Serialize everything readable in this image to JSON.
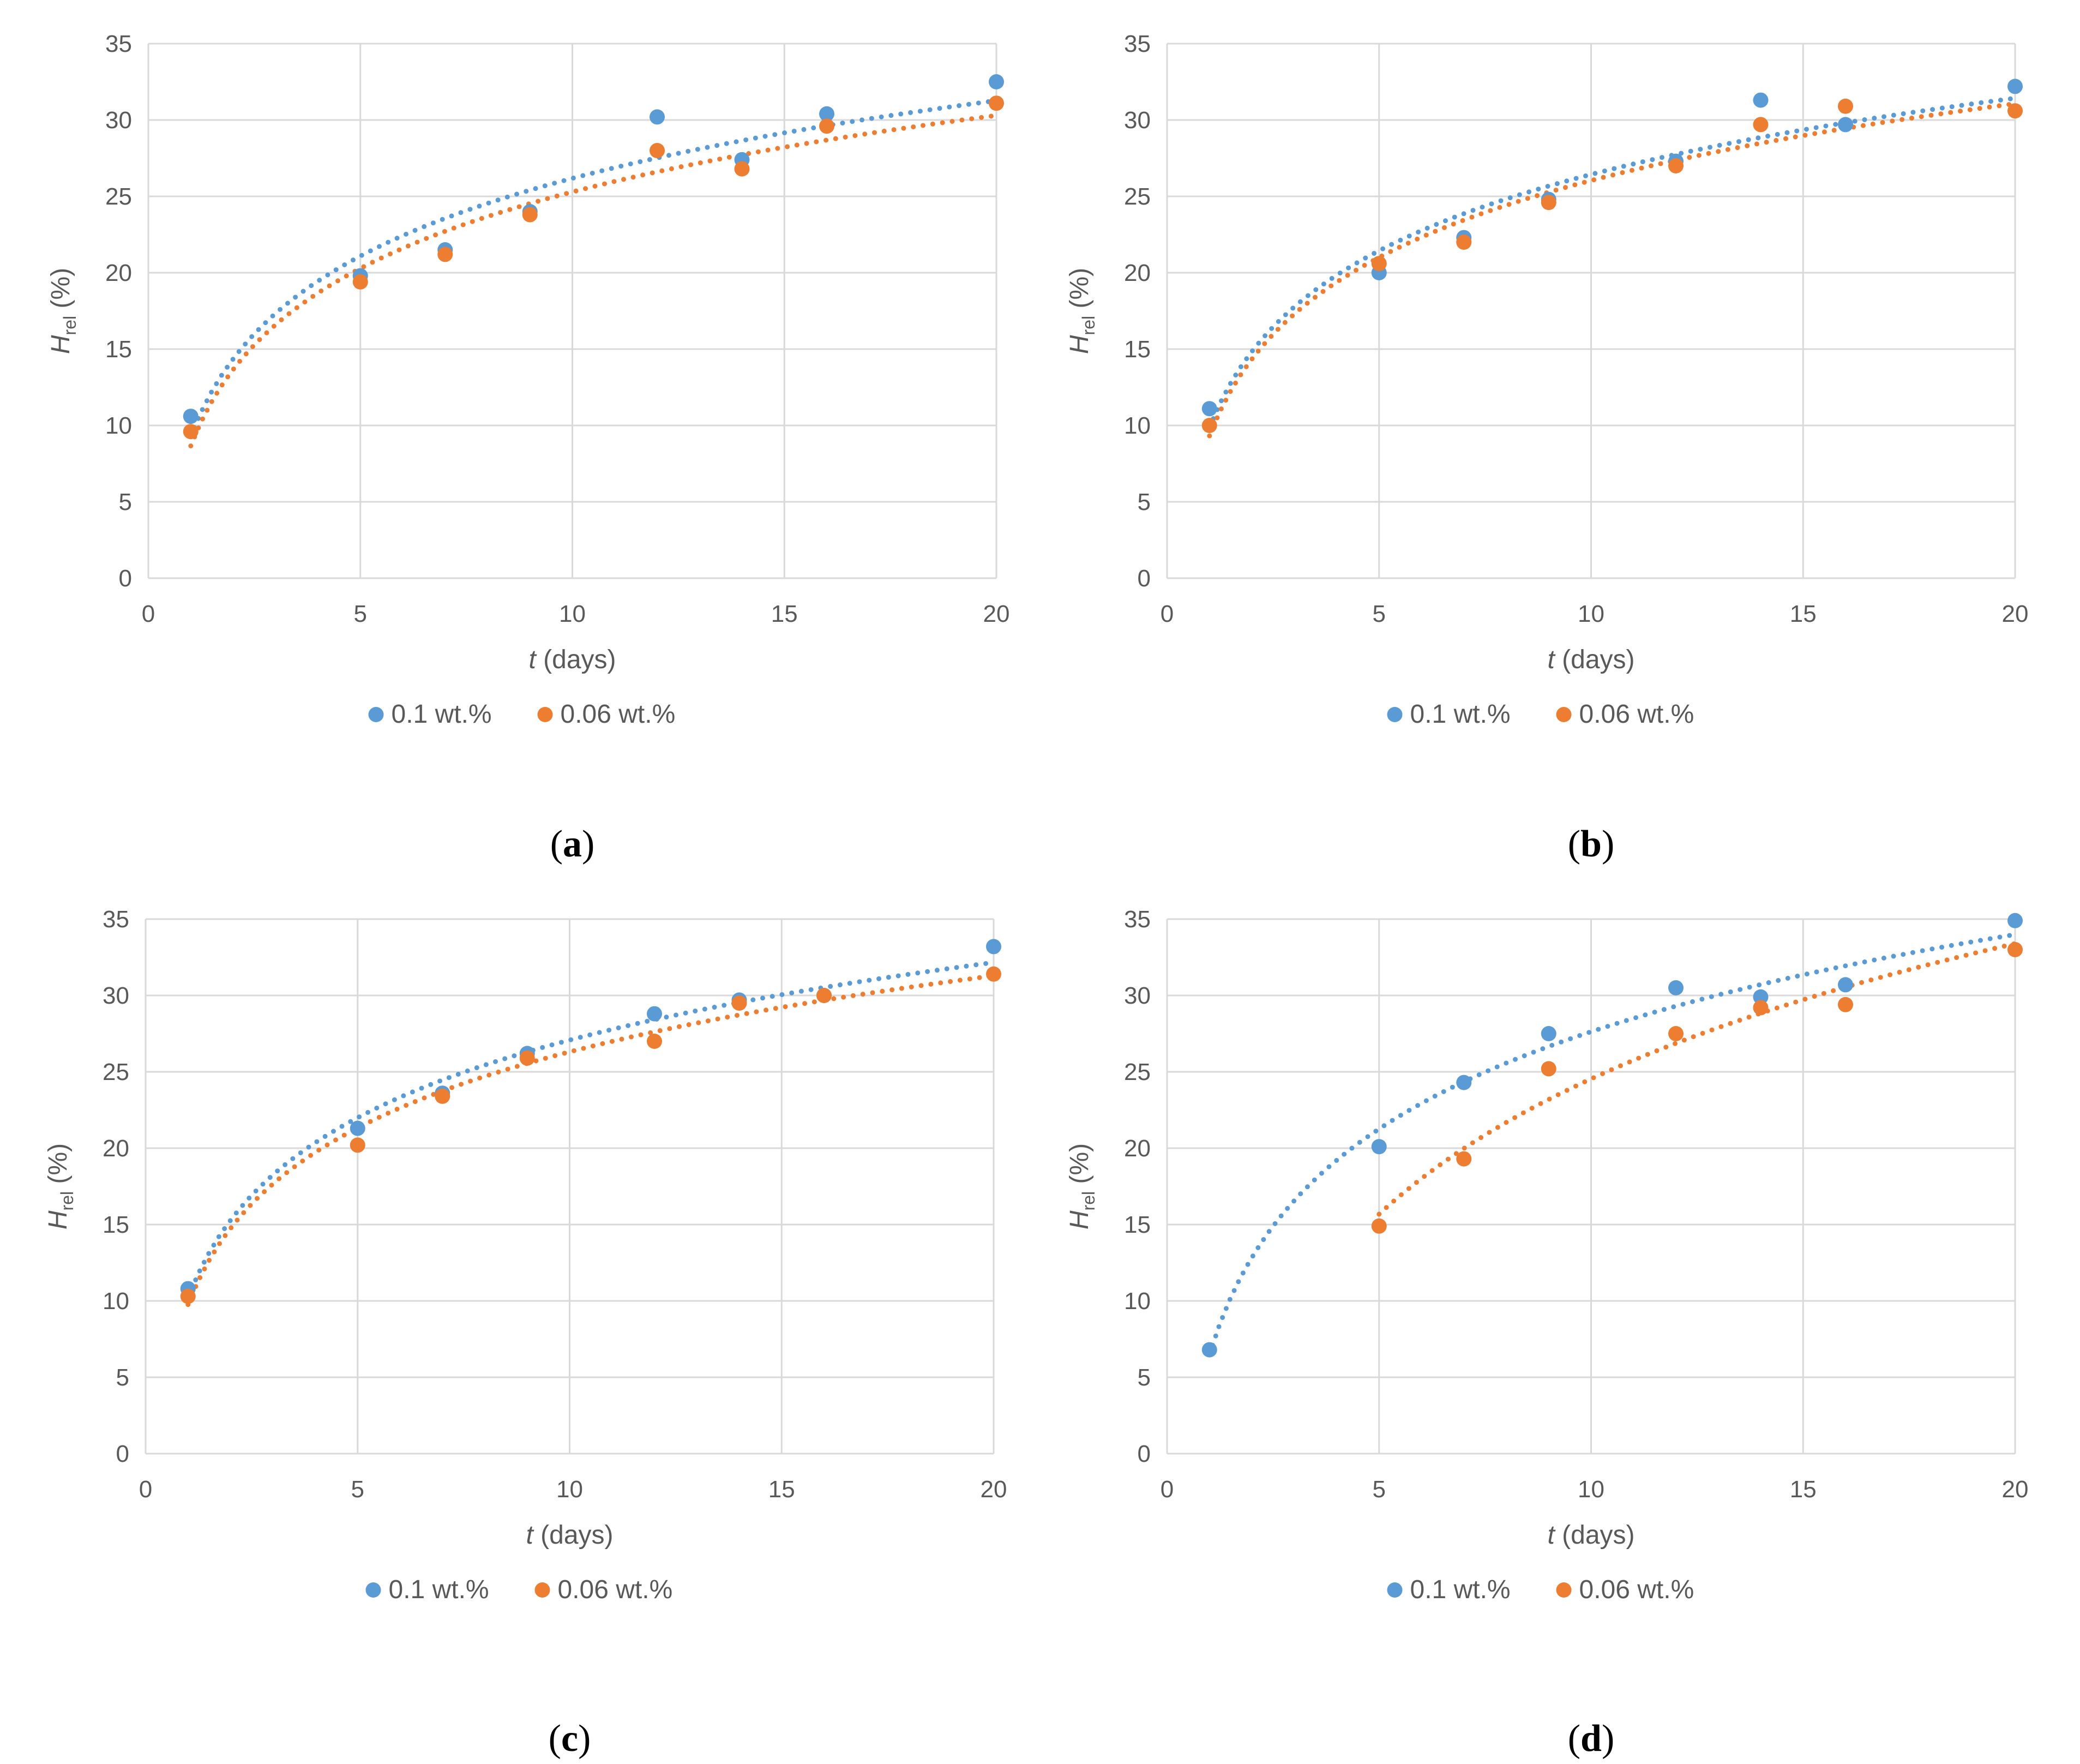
{
  "colors": {
    "series1": "#5B9BD5",
    "series2": "#ED7D31",
    "grid": "#d9d9d9",
    "text": "#595959"
  },
  "chart_data": [
    {
      "type": "scatter",
      "panel_label": "a",
      "xlabel": "t (days)",
      "xlabel_var": "t",
      "xlabel_unit": " (days)",
      "ylabel_var": "H",
      "ylabel_sub": "rel",
      "ylabel_unit": " (%)",
      "xlim": [
        0,
        20
      ],
      "ylim": [
        0,
        35
      ],
      "xticks": [
        0,
        5,
        10,
        15,
        20
      ],
      "yticks": [
        0,
        5,
        10,
        15,
        20,
        25,
        30,
        35
      ],
      "grid": true,
      "legend": "bottom",
      "series": [
        {
          "name": "0.1 wt.%",
          "x": [
            1,
            5,
            7,
            9,
            12,
            14,
            16,
            20
          ],
          "y": [
            10.6,
            19.8,
            21.5,
            24.0,
            30.2,
            27.4,
            30.4,
            32.5
          ],
          "trendline": {
            "type": "log",
            "from": 1,
            "to": 20
          }
        },
        {
          "name": "0.06 wt.%",
          "x": [
            1,
            5,
            7,
            9,
            12,
            14,
            16,
            20
          ],
          "y": [
            9.6,
            19.4,
            21.2,
            23.8,
            28.0,
            26.8,
            29.6,
            31.1
          ],
          "trendline": {
            "type": "log",
            "from": 1,
            "to": 20
          }
        }
      ]
    },
    {
      "type": "scatter",
      "panel_label": "b",
      "xlabel": "t (days)",
      "xlabel_var": "t",
      "xlabel_unit": " (days)",
      "ylabel_var": "H",
      "ylabel_sub": "rel",
      "ylabel_unit": " (%)",
      "xlim": [
        0,
        20
      ],
      "ylim": [
        0,
        35
      ],
      "xticks": [
        0,
        5,
        10,
        15,
        20
      ],
      "yticks": [
        0,
        5,
        10,
        15,
        20,
        25,
        30,
        35
      ],
      "grid": true,
      "legend": "bottom",
      "series": [
        {
          "name": "0.1 wt.%",
          "x": [
            1,
            5,
            7,
            9,
            12,
            14,
            16,
            20
          ],
          "y": [
            11.1,
            20.0,
            22.3,
            24.8,
            27.3,
            31.3,
            29.7,
            32.2
          ],
          "trendline": {
            "type": "log",
            "from": 1,
            "to": 20
          }
        },
        {
          "name": "0.06 wt.%",
          "x": [
            1,
            5,
            7,
            9,
            12,
            14,
            16,
            20
          ],
          "y": [
            10.0,
            20.6,
            22.0,
            24.6,
            27.0,
            29.7,
            30.9,
            30.6
          ],
          "trendline": {
            "type": "log",
            "from": 1,
            "to": 20
          }
        }
      ]
    },
    {
      "type": "scatter",
      "panel_label": "c",
      "xlabel": "t (days)",
      "xlabel_var": "t",
      "xlabel_unit": " (days)",
      "ylabel_var": "H",
      "ylabel_sub": "rel",
      "ylabel_unit": " (%)",
      "xlim": [
        0,
        20
      ],
      "ylim": [
        0,
        35
      ],
      "xticks": [
        0,
        5,
        10,
        15,
        20
      ],
      "yticks": [
        0,
        5,
        10,
        15,
        20,
        25,
        30,
        35
      ],
      "grid": true,
      "legend": "bottom",
      "series": [
        {
          "name": "0.1 wt.%",
          "x": [
            1,
            5,
            7,
            9,
            12,
            14,
            16,
            20
          ],
          "y": [
            10.8,
            21.3,
            23.6,
            26.2,
            28.8,
            29.7,
            30.0,
            33.2
          ],
          "trendline": {
            "type": "log",
            "from": 1,
            "to": 20
          }
        },
        {
          "name": "0.06 wt.%",
          "x": [
            1,
            5,
            7,
            9,
            12,
            14,
            16,
            20
          ],
          "y": [
            10.3,
            20.2,
            23.4,
            25.9,
            27.0,
            29.5,
            30.0,
            31.4
          ],
          "trendline": {
            "type": "log",
            "from": 1,
            "to": 20
          }
        }
      ]
    },
    {
      "type": "scatter",
      "panel_label": "d",
      "xlabel": "t (days)",
      "xlabel_var": "t",
      "xlabel_unit": " (days)",
      "ylabel_var": "H",
      "ylabel_sub": "rel",
      "ylabel_unit": " (%)",
      "xlim": [
        0,
        20
      ],
      "ylim": [
        0,
        35
      ],
      "xticks": [
        0,
        5,
        10,
        15,
        20
      ],
      "yticks": [
        0,
        5,
        10,
        15,
        20,
        25,
        30,
        35
      ],
      "grid": true,
      "legend": "bottom",
      "series": [
        {
          "name": "0.1 wt.%",
          "x": [
            1,
            5,
            7,
            9,
            12,
            14,
            16,
            20
          ],
          "y": [
            6.8,
            20.1,
            24.3,
            27.5,
            30.5,
            29.9,
            30.7,
            34.9
          ],
          "trendline": {
            "type": "log",
            "from": 1,
            "to": 20
          }
        },
        {
          "name": "0.06 wt.%",
          "x": [
            5,
            7,
            9,
            12,
            14,
            16,
            20
          ],
          "y": [
            14.9,
            19.3,
            25.2,
            27.5,
            29.2,
            29.4,
            33.0
          ],
          "trendline": {
            "type": "log",
            "from": 5,
            "to": 20
          }
        }
      ]
    }
  ]
}
